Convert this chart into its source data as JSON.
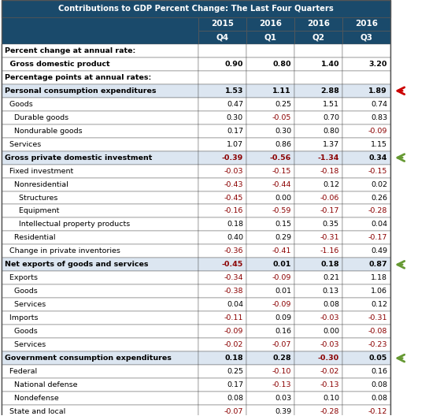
{
  "title": "Contributions to GDP Percent Change: The Last Four Quarters",
  "col_headers": [
    [
      "2015",
      "2016",
      "2016",
      "2016"
    ],
    [
      "Q4",
      "Q1",
      "Q2",
      "Q3"
    ]
  ],
  "rows": [
    {
      "label": "Percent change at annual rate:",
      "indent": 0,
      "bold": true,
      "header": true,
      "shaded": false,
      "values": [
        null,
        null,
        null,
        null
      ],
      "arrow": null
    },
    {
      "label": "  Gross domestic product",
      "indent": 1,
      "bold": true,
      "header": false,
      "shaded": false,
      "values": [
        0.9,
        0.8,
        1.4,
        3.2
      ],
      "arrow": null
    },
    {
      "label": "Percentage points at annual rates:",
      "indent": 0,
      "bold": true,
      "header": true,
      "shaded": false,
      "values": [
        null,
        null,
        null,
        null
      ],
      "arrow": null
    },
    {
      "label": "Personal consumption expenditures",
      "indent": 0,
      "bold": true,
      "header": false,
      "shaded": true,
      "values": [
        1.53,
        1.11,
        2.88,
        1.89
      ],
      "arrow": "red"
    },
    {
      "label": "  Goods",
      "indent": 1,
      "bold": false,
      "header": false,
      "shaded": false,
      "values": [
        0.47,
        0.25,
        1.51,
        0.74
      ],
      "arrow": null
    },
    {
      "label": "    Durable goods",
      "indent": 2,
      "bold": false,
      "header": false,
      "shaded": false,
      "values": [
        0.3,
        -0.05,
        0.7,
        0.83
      ],
      "arrow": null
    },
    {
      "label": "    Nondurable goods",
      "indent": 2,
      "bold": false,
      "header": false,
      "shaded": false,
      "values": [
        0.17,
        0.3,
        0.8,
        -0.09
      ],
      "arrow": null
    },
    {
      "label": "  Services",
      "indent": 1,
      "bold": false,
      "header": false,
      "shaded": false,
      "values": [
        1.07,
        0.86,
        1.37,
        1.15
      ],
      "arrow": null
    },
    {
      "label": "Gross private domestic investment",
      "indent": 0,
      "bold": true,
      "header": false,
      "shaded": true,
      "values": [
        -0.39,
        -0.56,
        -1.34,
        0.34
      ],
      "arrow": "green"
    },
    {
      "label": "  Fixed investment",
      "indent": 1,
      "bold": false,
      "header": false,
      "shaded": false,
      "values": [
        -0.03,
        -0.15,
        -0.18,
        -0.15
      ],
      "arrow": null
    },
    {
      "label": "    Nonresidential",
      "indent": 2,
      "bold": false,
      "header": false,
      "shaded": false,
      "values": [
        -0.43,
        -0.44,
        0.12,
        0.02
      ],
      "arrow": null
    },
    {
      "label": "      Structures",
      "indent": 3,
      "bold": false,
      "header": false,
      "shaded": false,
      "values": [
        -0.45,
        0.0,
        -0.06,
        0.26
      ],
      "arrow": null
    },
    {
      "label": "      Equipment",
      "indent": 3,
      "bold": false,
      "header": false,
      "shaded": false,
      "values": [
        -0.16,
        -0.59,
        -0.17,
        -0.28
      ],
      "arrow": null
    },
    {
      "label": "      Intellectual property products",
      "indent": 3,
      "bold": false,
      "header": false,
      "shaded": false,
      "values": [
        0.18,
        0.15,
        0.35,
        0.04
      ],
      "arrow": null
    },
    {
      "label": "    Residential",
      "indent": 2,
      "bold": false,
      "header": false,
      "shaded": false,
      "values": [
        0.4,
        0.29,
        -0.31,
        -0.17
      ],
      "arrow": null
    },
    {
      "label": "  Change in private inventories",
      "indent": 1,
      "bold": false,
      "header": false,
      "shaded": false,
      "values": [
        -0.36,
        -0.41,
        -1.16,
        0.49
      ],
      "arrow": null
    },
    {
      "label": "Net exports of goods and services",
      "indent": 0,
      "bold": true,
      "header": false,
      "shaded": true,
      "values": [
        -0.45,
        0.01,
        0.18,
        0.87
      ],
      "arrow": "green"
    },
    {
      "label": "  Exports",
      "indent": 1,
      "bold": false,
      "header": false,
      "shaded": false,
      "values": [
        -0.34,
        -0.09,
        0.21,
        1.18
      ],
      "arrow": null
    },
    {
      "label": "    Goods",
      "indent": 2,
      "bold": false,
      "header": false,
      "shaded": false,
      "values": [
        -0.38,
        0.01,
        0.13,
        1.06
      ],
      "arrow": null
    },
    {
      "label": "    Services",
      "indent": 2,
      "bold": false,
      "header": false,
      "shaded": false,
      "values": [
        0.04,
        -0.09,
        0.08,
        0.12
      ],
      "arrow": null
    },
    {
      "label": "  Imports",
      "indent": 1,
      "bold": false,
      "header": false,
      "shaded": false,
      "values": [
        -0.11,
        0.09,
        -0.03,
        -0.31
      ],
      "arrow": null
    },
    {
      "label": "    Goods",
      "indent": 2,
      "bold": false,
      "header": false,
      "shaded": false,
      "values": [
        -0.09,
        0.16,
        0.0,
        -0.08
      ],
      "arrow": null
    },
    {
      "label": "    Services",
      "indent": 2,
      "bold": false,
      "header": false,
      "shaded": false,
      "values": [
        -0.02,
        -0.07,
        -0.03,
        -0.23
      ],
      "arrow": null
    },
    {
      "label": "Government consumption expenditures",
      "indent": 0,
      "bold": true,
      "header": false,
      "shaded": true,
      "values": [
        0.18,
        0.28,
        -0.3,
        0.05
      ],
      "arrow": "green"
    },
    {
      "label": "  Federal",
      "indent": 1,
      "bold": false,
      "header": false,
      "shaded": false,
      "values": [
        0.25,
        -0.1,
        -0.02,
        0.16
      ],
      "arrow": null
    },
    {
      "label": "    National defense",
      "indent": 2,
      "bold": false,
      "header": false,
      "shaded": false,
      "values": [
        0.17,
        -0.13,
        -0.13,
        0.08
      ],
      "arrow": null
    },
    {
      "label": "    Nondefense",
      "indent": 2,
      "bold": false,
      "header": false,
      "shaded": false,
      "values": [
        0.08,
        0.03,
        0.1,
        0.08
      ],
      "arrow": null
    },
    {
      "label": "  State and local",
      "indent": 1,
      "bold": false,
      "header": false,
      "shaded": false,
      "values": [
        -0.07,
        0.39,
        -0.28,
        -0.12
      ],
      "arrow": null
    }
  ],
  "title_bg": "#1a4a6b",
  "title_fg": "#ffffff",
  "header_row_bg": "#1a4a6b",
  "header_row_fg": "#ffffff",
  "shaded_bg": "#dce6f1",
  "normal_bg": "#ffffff",
  "negative_color": "#8b0000",
  "positive_color": "#000000",
  "border_color": "#555555",
  "arrow_red": "#cc0000",
  "arrow_green": "#669933"
}
